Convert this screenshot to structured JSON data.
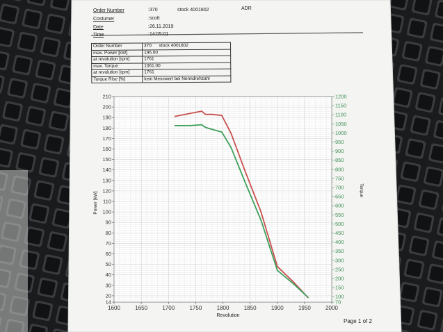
{
  "header": {
    "order_label": "Order Number",
    "order_value": ":370",
    "stock_value": "stock 4001802",
    "adr_value": "ADR",
    "customer_label": "Costumer",
    "customer_value": ":scott",
    "date_label": "Date",
    "date_value": ":26.11.2019",
    "time_label": "Time",
    "time_value": ":14:05:01"
  },
  "info_table": {
    "rows": [
      {
        "key": "Order Number",
        "value": "370",
        "extra": "stock 4001802"
      },
      {
        "key": "max. Power [kW]",
        "value": "196.00",
        "extra": ""
      },
      {
        "key": "at revolution [rpm]",
        "value": "1761",
        "extra": ""
      },
      {
        "key": "max. Torque",
        "value": "1061.00",
        "extra": ""
      },
      {
        "key": "at revolution [rpm]",
        "value": "1761",
        "extra": ""
      },
      {
        "key": "Torque Rise [%]",
        "value": "kein Messwert bei Nenndrehzahl",
        "extra": ""
      }
    ]
  },
  "page_footer": "Page 1 of 2",
  "chart_data": {
    "type": "line",
    "title": "",
    "xlabel": "Revolution",
    "ylabel": "Power [kW]",
    "y2label": "Torque",
    "xlim": [
      1600,
      2000
    ],
    "ylim": [
      14,
      210
    ],
    "y2lim": [
      70,
      1200
    ],
    "x_ticks": [
      "1600",
      "1650",
      "1700",
      "1750",
      "1800",
      "1850",
      "1900",
      "1950",
      "2000"
    ],
    "y_ticks": [
      "210",
      "200",
      "190",
      "180",
      "170",
      "160",
      "150",
      "140",
      "130",
      "120",
      "110",
      "100",
      "90",
      "80",
      "70",
      "60",
      "50",
      "40",
      "30",
      "20",
      "14"
    ],
    "y2_ticks": [
      "1200",
      "1150",
      "1100",
      "1050",
      "1000",
      "950",
      "900",
      "850",
      "800",
      "750",
      "700",
      "650",
      "600",
      "550",
      "500",
      "450",
      "400",
      "350",
      "300",
      "250",
      "200",
      "150",
      "100",
      "70"
    ],
    "grid": true,
    "series": [
      {
        "axis": "left",
        "color": "#c8504e",
        "x": [
          1711,
          1740,
          1761,
          1768,
          1780,
          1798,
          1815,
          1840,
          1870,
          1900,
          1930,
          1957
        ],
        "y": [
          191,
          194,
          196,
          193,
          193,
          192,
          175,
          140,
          100,
          48,
          33,
          18
        ]
      },
      {
        "axis": "right",
        "color": "#3da05a",
        "x": [
          1711,
          1740,
          1761,
          1768,
          1780,
          1798,
          1815,
          1840,
          1870,
          1900,
          1930,
          1957
        ],
        "y": [
          1040,
          1040,
          1045,
          1030,
          1020,
          1005,
          920,
          735,
          520,
          245,
          170,
          95
        ]
      }
    ]
  }
}
